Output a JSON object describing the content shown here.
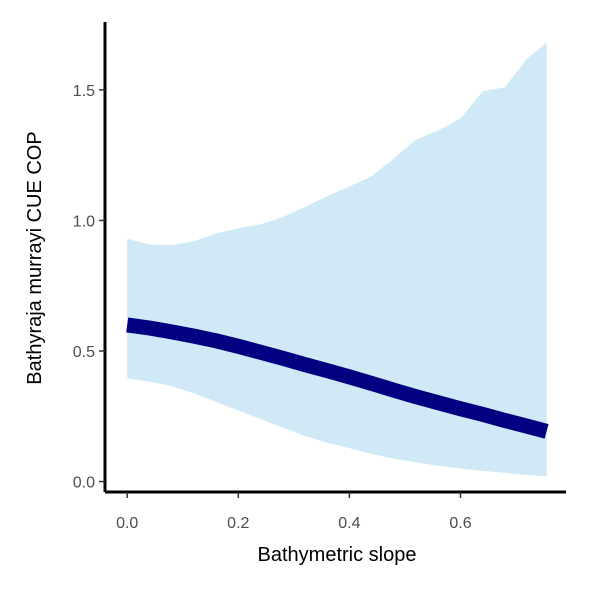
{
  "chart_data": {
    "type": "area",
    "xlabel": "Bathymetric slope",
    "ylabel": "Bathyraja murrayi  CUE COP",
    "xlim": [
      -0.04,
      0.79
    ],
    "ylim": [
      -0.04,
      1.76
    ],
    "x_ticks": [
      0.0,
      0.2,
      0.4,
      0.6
    ],
    "x_tick_labels": [
      "0.0",
      "0.2",
      "0.4",
      "0.6"
    ],
    "y_ticks": [
      0.0,
      0.5,
      1.0,
      1.5
    ],
    "y_tick_labels": [
      "0.0",
      "0.5",
      "1.0",
      "1.5"
    ],
    "grid": false,
    "legend": "none",
    "colors": {
      "line": "#000080",
      "ribbon": "#cfe9f6",
      "axis": "#000000",
      "tick_text": "#4d4d4d"
    },
    "series": [
      {
        "x": [
          0.0,
          0.04,
          0.08,
          0.12,
          0.16,
          0.2,
          0.24,
          0.28,
          0.32,
          0.36,
          0.4,
          0.44,
          0.48,
          0.52,
          0.56,
          0.6,
          0.64,
          0.68,
          0.72,
          0.755
        ],
        "fit": [
          0.6,
          0.588,
          0.573,
          0.557,
          0.539,
          0.518,
          0.495,
          0.472,
          0.448,
          0.425,
          0.401,
          0.376,
          0.35,
          0.325,
          0.302,
          0.279,
          0.257,
          0.234,
          0.212,
          0.192
        ],
        "lower": [
          0.395,
          0.383,
          0.365,
          0.338,
          0.305,
          0.272,
          0.24,
          0.206,
          0.175,
          0.149,
          0.128,
          0.106,
          0.088,
          0.074,
          0.06,
          0.05,
          0.041,
          0.033,
          0.025,
          0.02
        ],
        "upper": [
          0.93,
          0.908,
          0.905,
          0.92,
          0.95,
          0.97,
          0.985,
          1.013,
          1.052,
          1.093,
          1.13,
          1.17,
          1.237,
          1.31,
          1.345,
          1.39,
          1.495,
          1.51,
          1.62,
          1.68
        ]
      }
    ]
  }
}
